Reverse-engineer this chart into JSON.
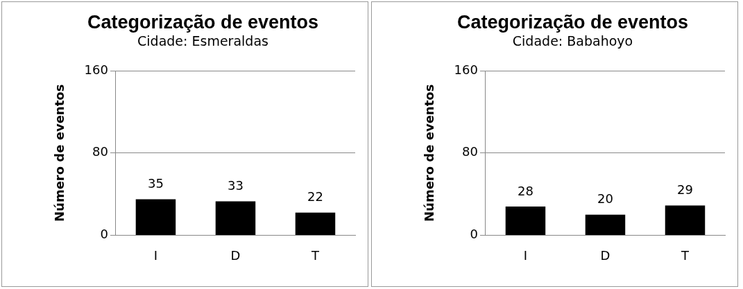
{
  "chart_data": [
    {
      "type": "bar",
      "title": "Categorização de eventos",
      "subtitle": "Cidade: Esmeraldas",
      "ylabel": "Número de eventos",
      "categories": [
        "I",
        "D",
        "T"
      ],
      "values": [
        35,
        33,
        22
      ],
      "color": "#000000",
      "ylim": [
        0,
        160
      ],
      "yticks": [
        0,
        80,
        160
      ],
      "grid": "y",
      "data_labels": true,
      "legend": false
    },
    {
      "type": "bar",
      "title": "Categorização de eventos",
      "subtitle": "Cidade: Babahoyo",
      "ylabel": "Número de eventos",
      "categories": [
        "I",
        "D",
        "T"
      ],
      "values": [
        28,
        20,
        29
      ],
      "color": "#000000",
      "ylim": [
        0,
        160
      ],
      "yticks": [
        0,
        80,
        160
      ],
      "grid": "y",
      "data_labels": true,
      "legend": false
    }
  ]
}
